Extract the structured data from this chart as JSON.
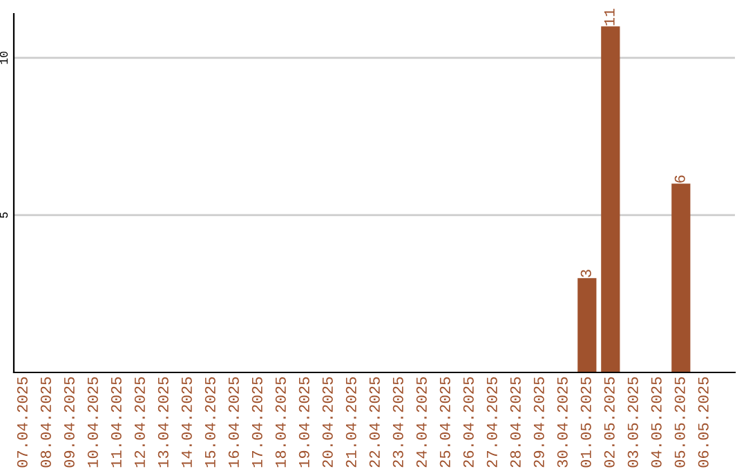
{
  "chart_data": {
    "type": "bar",
    "categories": [
      "07.04.2025",
      "08.04.2025",
      "09.04.2025",
      "10.04.2025",
      "11.04.2025",
      "12.04.2025",
      "13.04.2025",
      "14.04.2025",
      "15.04.2025",
      "16.04.2025",
      "17.04.2025",
      "18.04.2025",
      "19.04.2025",
      "20.04.2025",
      "21.04.2025",
      "22.04.2025",
      "23.04.2025",
      "24.04.2025",
      "25.04.2025",
      "26.04.2025",
      "27.04.2025",
      "28.04.2025",
      "29.04.2025",
      "30.04.2025",
      "01.05.2025",
      "02.05.2025",
      "03.05.2025",
      "04.05.2025",
      "05.05.2025",
      "06.05.2025"
    ],
    "values": [
      0,
      0,
      0,
      0,
      0,
      0,
      0,
      0,
      0,
      0,
      0,
      0,
      0,
      0,
      0,
      0,
      0,
      0,
      0,
      0,
      0,
      0,
      0,
      0,
      3,
      11,
      0,
      0,
      6,
      0
    ],
    "value_labels": [
      null,
      null,
      null,
      null,
      null,
      null,
      null,
      null,
      null,
      null,
      null,
      null,
      null,
      null,
      null,
      null,
      null,
      null,
      null,
      null,
      null,
      null,
      null,
      null,
      "3",
      "11",
      null,
      null,
      "6",
      null
    ],
    "color": "#a0522d",
    "ylim": [
      0,
      11.4
    ],
    "yticks": [
      5,
      10
    ],
    "grid": "y"
  }
}
